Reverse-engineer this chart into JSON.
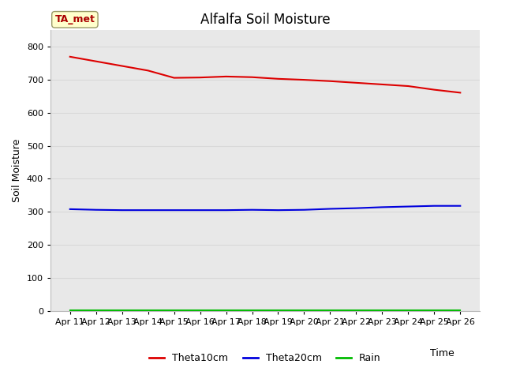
{
  "title": "Alfalfa Soil Moisture",
  "xlabel": "Time",
  "ylabel": "Soil Moisture",
  "plot_bg_color": "#e8e8e8",
  "figure_bg_color": "#ffffff",
  "ylim": [
    0,
    850
  ],
  "yticks": [
    0,
    100,
    200,
    300,
    400,
    500,
    600,
    700,
    800
  ],
  "x_dates": [
    "Apr 11",
    "Apr 12",
    "Apr 13",
    "Apr 14",
    "Apr 15",
    "Apr 16",
    "Apr 17",
    "Apr 18",
    "Apr 19",
    "Apr 20",
    "Apr 21",
    "Apr 22",
    "Apr 23",
    "Apr 24",
    "Apr 25",
    "Apr 26"
  ],
  "theta10cm": [
    770,
    756,
    742,
    728,
    706,
    707,
    710,
    708,
    703,
    700,
    696,
    691,
    686,
    681,
    670,
    661
  ],
  "theta20cm": [
    308,
    306,
    305,
    305,
    305,
    305,
    305,
    306,
    305,
    306,
    309,
    311,
    314,
    316,
    318,
    318
  ],
  "rain": [
    1,
    1,
    1,
    1,
    1,
    1,
    1,
    1,
    1,
    1,
    1,
    1,
    1,
    1,
    1,
    1
  ],
  "theta10_color": "#dd0000",
  "theta20_color": "#0000dd",
  "rain_color": "#00bb00",
  "station_label": "TA_met",
  "station_box_facecolor": "#ffffcc",
  "station_box_edgecolor": "#999966",
  "station_text_color": "#aa0000",
  "legend_labels": [
    "Theta10cm",
    "Theta20cm",
    "Rain"
  ],
  "grid_color": "#d8d8d8",
  "title_fontsize": 12,
  "tick_fontsize": 8,
  "ylabel_fontsize": 9,
  "xlabel_fontsize": 9
}
